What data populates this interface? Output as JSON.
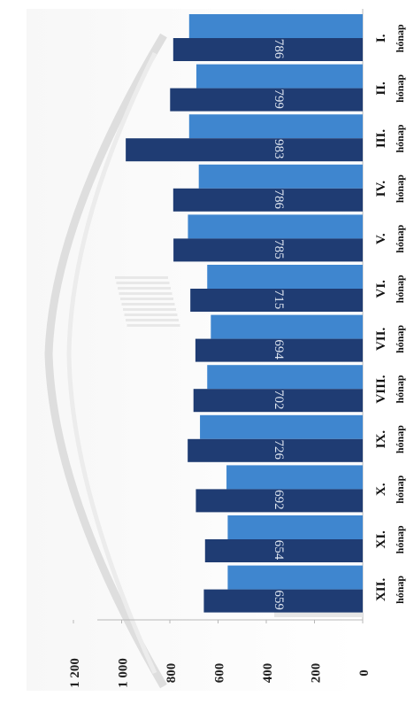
{
  "chart_data": {
    "type": "bar",
    "orientation": "rotated-90",
    "categories": [
      "I. hónap",
      "II. hónap",
      "III. hónap",
      "IV. hónap",
      "V. hónap",
      "VI. hónap",
      "VII. hónap",
      "VIII. hónap",
      "IX. hónap",
      "X. hónap",
      "XI. hónap",
      "XII. hónap"
    ],
    "category_lines": [
      [
        "I.",
        "hónap"
      ],
      [
        "II.",
        "hónap"
      ],
      [
        "III.",
        "hónap"
      ],
      [
        "IV.",
        "hónap"
      ],
      [
        "V.",
        "hónap"
      ],
      [
        "VI.",
        "hónap"
      ],
      [
        "VII.",
        "hónap"
      ],
      [
        "VIII.",
        "hónap"
      ],
      [
        "IX.",
        "hónap"
      ],
      [
        "X.",
        "hónap"
      ],
      [
        "XI.",
        "hónap"
      ],
      [
        "XII.",
        "hónap"
      ]
    ],
    "series": [
      {
        "values": [
          786,
          799,
          983,
          786,
          785,
          715,
          694,
          702,
          726,
          692,
          654,
          659
        ],
        "color": "#1f3c73",
        "labels_visible": true
      },
      {
        "values": [
          720,
          690,
          720,
          680,
          725,
          645,
          630,
          645,
          675,
          565,
          560,
          560
        ],
        "color": "#3f86cf",
        "labels_visible": false
      }
    ],
    "yticks": [
      "0",
      "200",
      "400",
      "600",
      "800",
      "1 000",
      "1 200"
    ],
    "ylim": [
      0,
      1200
    ],
    "grid": false,
    "title": "",
    "xlabel": "",
    "ylabel": ""
  }
}
